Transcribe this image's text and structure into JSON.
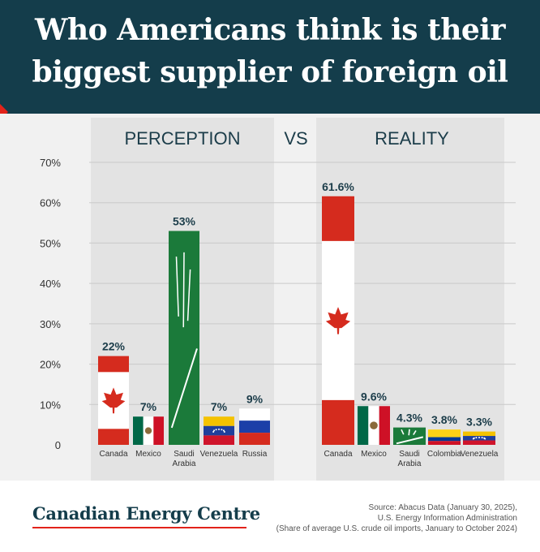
{
  "header": {
    "title_line1": "Who Americans think is their",
    "title_line2": "biggest supplier of foreign oil"
  },
  "panels": {
    "left_title": "PERCEPTION",
    "vs": "VS",
    "right_title": "REALITY"
  },
  "chart_data": [
    {
      "type": "bar",
      "title": "PERCEPTION",
      "categories": [
        [
          "Canada"
        ],
        [
          "Mexico"
        ],
        [
          "Saudi",
          "Arabia"
        ],
        [
          "Venezuela"
        ],
        [
          "Russia"
        ]
      ],
      "values": [
        22,
        7,
        53,
        7,
        9
      ],
      "labels": [
        "22%",
        "7%",
        "53%",
        "7%",
        "9%"
      ],
      "flags": [
        "canada",
        "mexico",
        "saudi",
        "venezuela",
        "russia"
      ],
      "ylim": [
        0,
        70
      ],
      "yticks": [
        "0",
        "10%",
        "20%",
        "30%",
        "40%",
        "50%",
        "60%",
        "70%"
      ],
      "grid": true
    },
    {
      "type": "bar",
      "title": "REALITY",
      "categories": [
        [
          "Canada"
        ],
        [
          "Mexico"
        ],
        [
          "Saudi",
          "Arabia"
        ],
        [
          "Colombia"
        ],
        [
          "Venezuela"
        ]
      ],
      "values": [
        61.6,
        9.6,
        4.3,
        3.8,
        3.3
      ],
      "labels": [
        "61.6%",
        "9.6%",
        "4.3%",
        "3.8%",
        "3.3%"
      ],
      "flags": [
        "canada",
        "mexico",
        "saudi",
        "colombia",
        "venezuela"
      ],
      "ylim": [
        0,
        70
      ],
      "grid": true
    }
  ],
  "colors": {
    "header_bg": "#143d4b",
    "accent": "#e2231a",
    "label_text": "#1c3d4a",
    "canada_red": "#d52b1e",
    "saudi_green": "#1b7a3a",
    "mexico_green": "#006847",
    "venezuela_yellow": "#f4c200",
    "venezuela_blue": "#1f3f9c",
    "russia_blue": "#1c3fa8"
  },
  "footer": {
    "brand": "Canadian Energy Centre",
    "source_lines": [
      "Source: Abacus Data (January 30, 2025),",
      "U.S. Energy Information Administration",
      "(Share of average U.S. crude oil imports, January to October 2024)"
    ]
  }
}
